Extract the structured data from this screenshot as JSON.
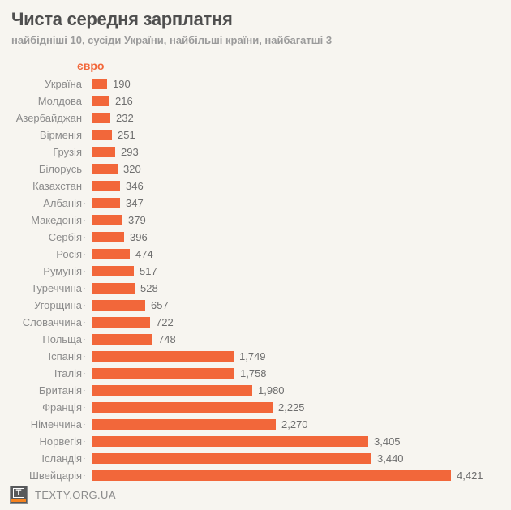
{
  "header": {
    "title": "Чиста середня зарплатня",
    "subtitle": "найбідніші 10, сусіди України, найбільші країни, найбагатші 3"
  },
  "chart_data": {
    "type": "bar",
    "orientation": "horizontal",
    "title": "Чиста середня зарплатня",
    "subtitle": "найбідніші 10, сусіди України, найбільші країни, найбагатші 3",
    "unit_label": "євро",
    "xlabel": "євро",
    "ylabel": "",
    "xlim": [
      0,
      4421
    ],
    "grid": false,
    "legend": false,
    "categories": [
      "Україна",
      "Молдова",
      "Азербайджан",
      "Вірменія",
      "Грузія",
      "Білорусь",
      "Казахстан",
      "Албанія",
      "Македонія",
      "Сербія",
      "Росія",
      "Румунія",
      "Туреччина",
      "Угорщина",
      "Словаччина",
      "Польща",
      "Іспанія",
      "Італія",
      "Британія",
      "Франція",
      "Німеччина",
      "Норвегія",
      "Ісландія",
      "Швейцарія"
    ],
    "values": [
      190,
      216,
      232,
      251,
      293,
      320,
      346,
      347,
      379,
      396,
      474,
      517,
      528,
      657,
      722,
      748,
      1749,
      1758,
      1980,
      2225,
      2270,
      3405,
      3440,
      4421
    ],
    "value_labels": [
      "190",
      "216",
      "232",
      "251",
      "293",
      "320",
      "346",
      "347",
      "379",
      "396",
      "474",
      "517",
      "528",
      "657",
      "722",
      "748",
      "1,749",
      "1,758",
      "1,980",
      "2,225",
      "2,270",
      "3,405",
      "3,440",
      "4,421"
    ],
    "bar_color": "#f2673a"
  },
  "colors": {
    "background": "#f7f5f0",
    "bar": "#f2673a",
    "accent_orange": "#f2673a",
    "title_text": "#4f4f4f",
    "subtitle_text": "#9b9b9b",
    "category_text": "#8b8b8b",
    "value_text": "#6e6e6e",
    "axis_line": "#b3b3b3",
    "logo_stripe": "#f5821f"
  },
  "footer": {
    "brand": "TEXTY.ORG.UA",
    "logo_letter": "T"
  }
}
